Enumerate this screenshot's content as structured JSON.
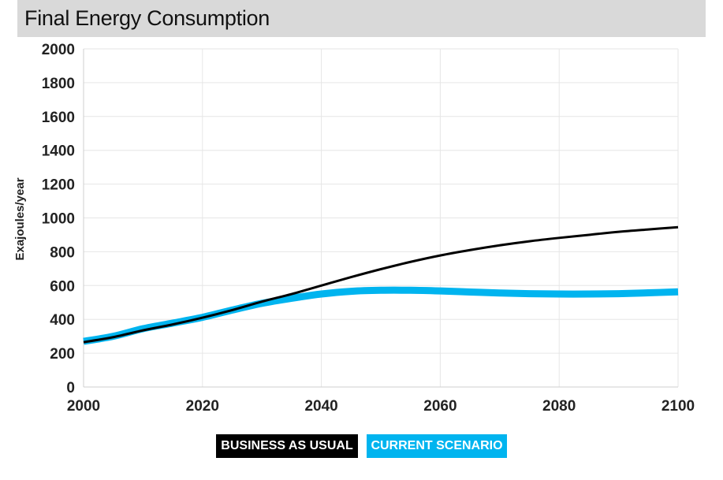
{
  "title": "Final Energy Consumption",
  "colors": {
    "bau": "#000000",
    "current": "#00b4ef",
    "grid": "#e6e6e6",
    "title_bg": "#d9d9d9"
  },
  "legend": {
    "bau_label": "BUSINESS AS USUAL",
    "current_label": "CURRENT SCENARIO"
  },
  "chart_data": {
    "type": "line",
    "ylabel": "Exajoules/year",
    "xlabel": "",
    "xlim": [
      2000,
      2100
    ],
    "ylim": [
      0,
      2000
    ],
    "x_ticks": [
      2000,
      2020,
      2040,
      2060,
      2080,
      2100
    ],
    "y_ticks": [
      0,
      200,
      400,
      600,
      800,
      1000,
      1200,
      1400,
      1600,
      1800,
      2000
    ],
    "grid": true,
    "legend_position": "bottom",
    "x": [
      2000,
      2005,
      2010,
      2015,
      2020,
      2025,
      2030,
      2035,
      2040,
      2045,
      2050,
      2055,
      2060,
      2065,
      2070,
      2075,
      2080,
      2085,
      2090,
      2095,
      2100
    ],
    "series": [
      {
        "name": "BUSINESS AS USUAL",
        "color": "#000000",
        "values": [
          265,
          295,
          335,
          370,
          410,
          455,
          505,
          550,
          600,
          650,
          697,
          740,
          778,
          810,
          838,
          862,
          882,
          900,
          918,
          932,
          945
        ]
      },
      {
        "name": "CURRENT SCENARIO",
        "color": "#00b4ef",
        "values": [
          270,
          300,
          345,
          378,
          412,
          455,
          495,
          525,
          550,
          566,
          572,
          572,
          568,
          562,
          556,
          552,
          550,
          550,
          552,
          557,
          563
        ]
      }
    ]
  }
}
